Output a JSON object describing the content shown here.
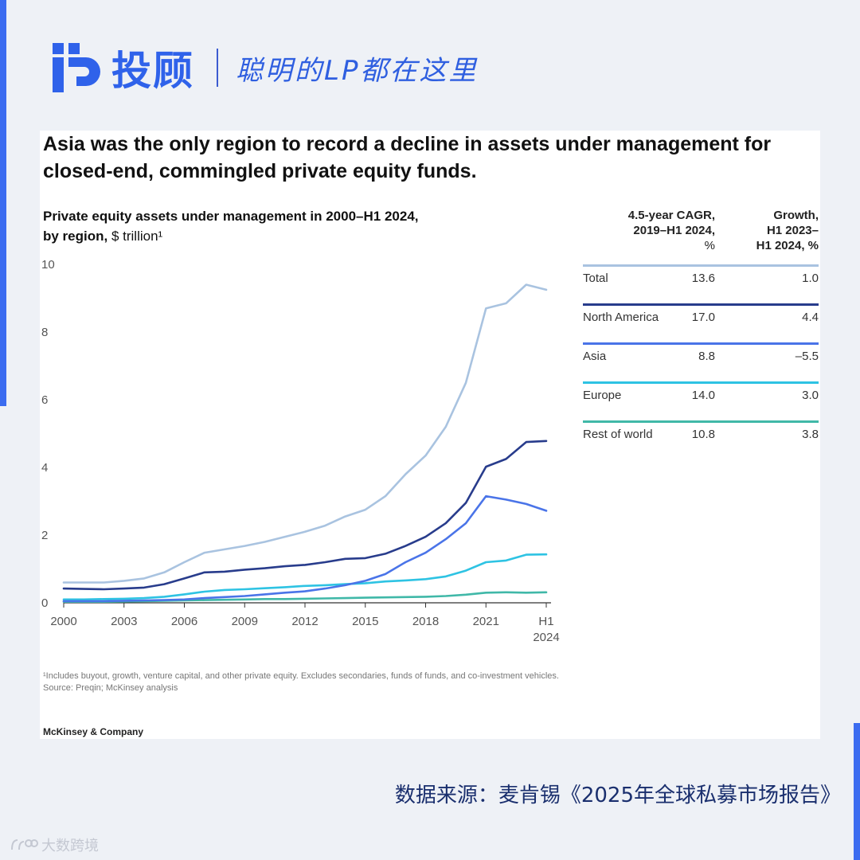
{
  "brand": {
    "name": "投顾",
    "tagline": "聪明的LP都在这里",
    "primary_color": "#2f62ea"
  },
  "headline": "Asia was the only region to record a decline in assets under management for closed-end, commingled private equity funds.",
  "subtitle": {
    "line1": "Private equity assets under management in 2000–H1 2024,",
    "line2_bold": "by region,",
    "line2_rest": " $ trillion¹"
  },
  "table": {
    "col1_header": [
      "4.5-year CAGR,",
      "2019–H1 2024,",
      "%"
    ],
    "col2_header": [
      "Growth,",
      "H1 2023–",
      "H1 2024, %"
    ],
    "rows": [
      {
        "label": "Total",
        "cagr": "13.6",
        "growth": "1.0",
        "color": "#a9c3e0"
      },
      {
        "label": "North America",
        "cagr": "17.0",
        "growth": "4.4",
        "color": "#283c8c"
      },
      {
        "label": "Asia",
        "cagr": "8.8",
        "growth": "–5.5",
        "color": "#4a74e8"
      },
      {
        "label": "Europe",
        "cagr": "14.0",
        "growth": "3.0",
        "color": "#2ec3e3"
      },
      {
        "label": "Rest of world",
        "cagr": "10.8",
        "growth": "3.8",
        "color": "#40b8a8"
      }
    ]
  },
  "chart_data": {
    "type": "line",
    "title": "Private equity assets under management in 2000–H1 2024, by region, $ trillion",
    "x": [
      2000,
      2001,
      2002,
      2003,
      2004,
      2005,
      2006,
      2007,
      2008,
      2009,
      2010,
      2011,
      2012,
      2013,
      2014,
      2015,
      2016,
      2017,
      2018,
      2019,
      2020,
      2021,
      2022,
      2023,
      2024
    ],
    "xtick_values": [
      2000,
      2003,
      2006,
      2009,
      2012,
      2015,
      2018,
      2021
    ],
    "xtick_labels": [
      "2000",
      "2003",
      "2006",
      "2009",
      "2012",
      "2015",
      "2018",
      "2021"
    ],
    "last_label": [
      "H1",
      "2024"
    ],
    "ylim": [
      0,
      10
    ],
    "yticks": [
      "0",
      "2",
      "4",
      "6",
      "8",
      "10"
    ],
    "series": [
      {
        "name": "Total",
        "color": "#a9c3e0",
        "values": [
          0.6,
          0.6,
          0.6,
          0.65,
          0.72,
          0.9,
          1.2,
          1.48,
          1.58,
          1.68,
          1.8,
          1.95,
          2.1,
          2.28,
          2.55,
          2.75,
          3.15,
          3.8,
          4.35,
          5.2,
          6.5,
          8.7,
          8.85,
          9.4,
          9.25
        ]
      },
      {
        "name": "North America",
        "color": "#283c8c",
        "values": [
          0.42,
          0.41,
          0.4,
          0.42,
          0.45,
          0.55,
          0.72,
          0.9,
          0.92,
          0.98,
          1.02,
          1.08,
          1.12,
          1.2,
          1.3,
          1.32,
          1.45,
          1.68,
          1.95,
          2.35,
          2.95,
          4.02,
          4.25,
          4.75,
          4.78
        ]
      },
      {
        "name": "Asia",
        "color": "#4a74e8",
        "values": [
          0.05,
          0.05,
          0.05,
          0.06,
          0.07,
          0.08,
          0.1,
          0.14,
          0.17,
          0.2,
          0.25,
          0.3,
          0.34,
          0.42,
          0.52,
          0.65,
          0.85,
          1.2,
          1.48,
          1.88,
          2.35,
          3.15,
          3.05,
          2.92,
          2.72
        ]
      },
      {
        "name": "Europe",
        "color": "#2ec3e3",
        "values": [
          0.1,
          0.1,
          0.11,
          0.12,
          0.14,
          0.18,
          0.25,
          0.33,
          0.38,
          0.4,
          0.43,
          0.46,
          0.5,
          0.52,
          0.55,
          0.58,
          0.63,
          0.66,
          0.7,
          0.78,
          0.95,
          1.2,
          1.25,
          1.42,
          1.43
        ]
      },
      {
        "name": "Rest of world",
        "color": "#40b8a8",
        "values": [
          0.03,
          0.03,
          0.03,
          0.04,
          0.05,
          0.06,
          0.07,
          0.08,
          0.09,
          0.1,
          0.11,
          0.11,
          0.12,
          0.13,
          0.14,
          0.15,
          0.16,
          0.17,
          0.18,
          0.2,
          0.24,
          0.3,
          0.31,
          0.3,
          0.31
        ]
      }
    ]
  },
  "footnote": {
    "line1": "¹Includes buyout, growth, venture capital, and other private equity. Excludes secondaries, funds of funds, and co-investment vehicles.",
    "line2": "Source: Preqin; McKinsey analysis"
  },
  "publisher": "McKinsey & Company",
  "source_note": "数据来源：麦肯锡《2025年全球私募市场报告》",
  "watermark": "大数跨境"
}
